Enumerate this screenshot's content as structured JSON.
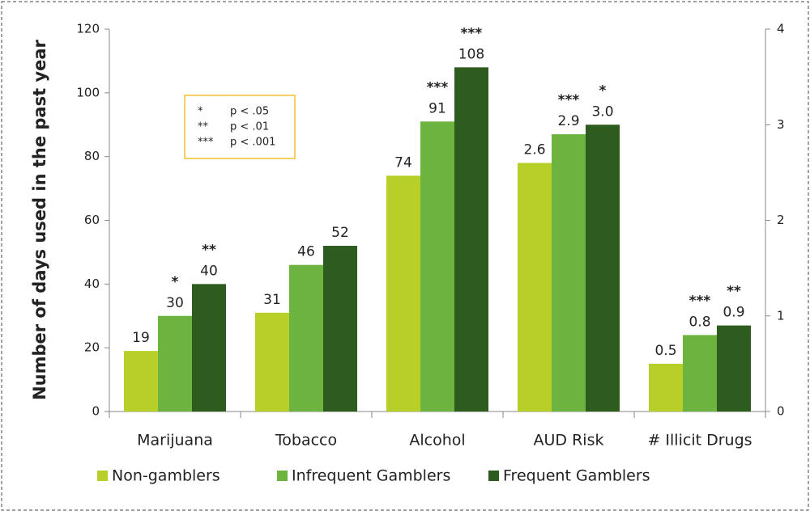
{
  "chart_data": {
    "type": "bar",
    "y_label": "Number of days used in the past year",
    "categories": [
      "Marijuana",
      "Tobacco",
      "Alcohol",
      "AUD Risk",
      "# Illicit Drugs"
    ],
    "category_axis": [
      "y",
      "y",
      "y",
      "y2",
      "y2"
    ],
    "series": [
      {
        "name": "Non-gamblers",
        "color": "#b8cf2a",
        "values": [
          19,
          31,
          74,
          2.6,
          0.5
        ],
        "stars": [
          null,
          null,
          null,
          null,
          null
        ]
      },
      {
        "name": "Infrequent Gamblers",
        "color": "#6cb33f",
        "values": [
          30,
          46,
          91,
          2.9,
          0.8
        ],
        "stars": [
          "*",
          null,
          "***",
          "***",
          "***"
        ]
      },
      {
        "name": "Frequent Gamblers",
        "color": "#2e5b1e",
        "values": [
          40,
          52,
          108,
          3.0,
          0.9
        ],
        "value_labels": [
          "40",
          "52",
          "108",
          "3.0",
          "0.9"
        ],
        "stars": [
          "**",
          null,
          "***",
          "*",
          "**"
        ]
      }
    ],
    "ylim": [
      0,
      120
    ],
    "yticks": [
      0,
      20,
      40,
      60,
      80,
      100,
      120
    ],
    "y2lim": [
      0,
      4
    ],
    "y2ticks": [
      0,
      1,
      2,
      3,
      4
    ],
    "significance_key": [
      {
        "symbol": "*",
        "label": "p < .05"
      },
      {
        "symbol": "**",
        "label": "p < .01"
      },
      {
        "symbol": "***",
        "label": "p < .001"
      }
    ]
  }
}
